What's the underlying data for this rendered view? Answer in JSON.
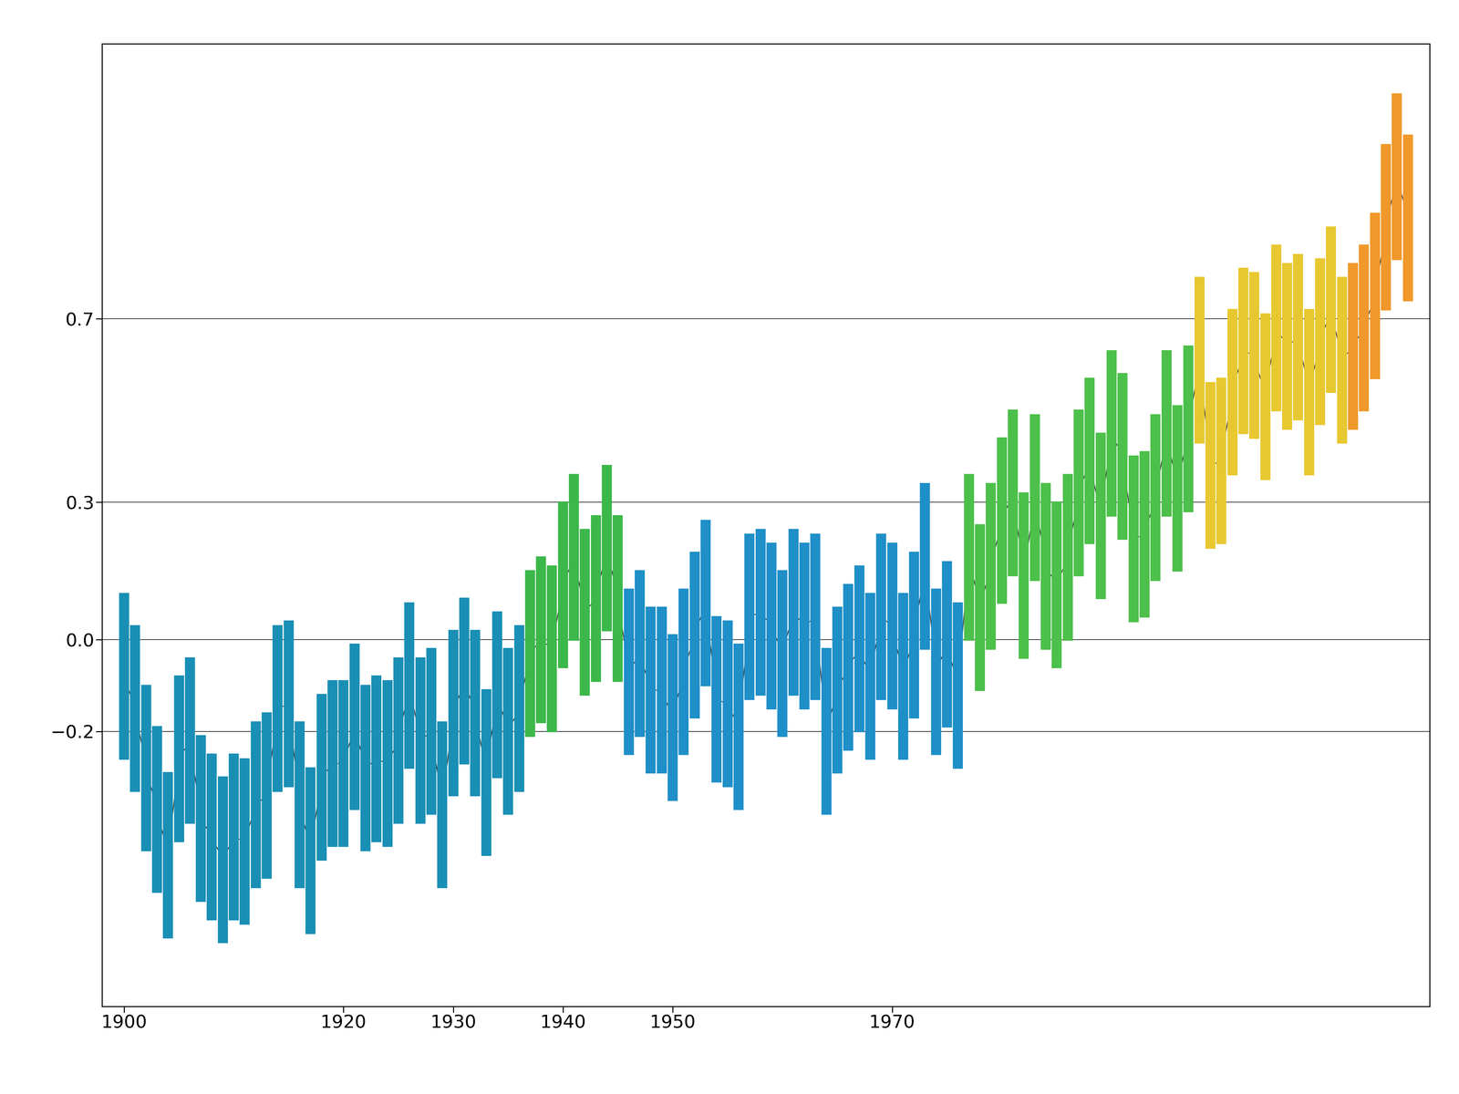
{
  "chart_data": {
    "type": "line",
    "marker": "stick",
    "grid": true,
    "x": [
      1900,
      1901,
      1902,
      1903,
      1904,
      1905,
      1906,
      1907,
      1908,
      1909,
      1910,
      1911,
      1912,
      1913,
      1914,
      1915,
      1916,
      1917,
      1918,
      1919,
      1920,
      1921,
      1922,
      1923,
      1924,
      1925,
      1926,
      1927,
      1928,
      1929,
      1930,
      1931,
      1932,
      1933,
      1934,
      1935,
      1936,
      1937,
      1938,
      1939,
      1940,
      1941,
      1942,
      1943,
      1944,
      1945,
      1946,
      1947,
      1948,
      1949,
      1950,
      1951,
      1952,
      1953,
      1954,
      1955,
      1956,
      1957,
      1958,
      1959,
      1960,
      1961,
      1962,
      1963,
      1964,
      1965,
      1966,
      1967,
      1968,
      1969,
      1970,
      1971,
      1972,
      1973,
      1974,
      1975,
      1976,
      1977,
      1978,
      1979,
      1980,
      1981,
      1982,
      1983,
      1984,
      1985,
      1986,
      1987,
      1988,
      1989,
      1990,
      1991,
      1992,
      1993,
      1994,
      1995,
      1996,
      1997,
      1998,
      1999,
      2000,
      2001,
      2002,
      2003,
      2004,
      2005,
      2006,
      2007,
      2008,
      2009,
      2010,
      2011,
      2012,
      2013,
      2014,
      2015,
      2016,
      2017
    ],
    "values": [
      -0.08,
      -0.15,
      -0.28,
      -0.37,
      -0.47,
      -0.26,
      -0.22,
      -0.39,
      -0.43,
      -0.48,
      -0.43,
      -0.44,
      -0.36,
      -0.34,
      -0.15,
      -0.14,
      -0.36,
      -0.46,
      -0.3,
      -0.27,
      -0.27,
      -0.19,
      -0.28,
      -0.26,
      -0.27,
      -0.22,
      -0.1,
      -0.22,
      -0.2,
      -0.36,
      -0.16,
      -0.09,
      -0.16,
      -0.29,
      -0.12,
      -0.2,
      -0.15,
      -0.03,
      0.0,
      -0.02,
      0.12,
      0.18,
      0.06,
      0.09,
      0.2,
      0.09,
      -0.07,
      -0.03,
      -0.11,
      -0.11,
      -0.17,
      -0.07,
      0.01,
      0.08,
      -0.13,
      -0.14,
      -0.19,
      0.05,
      0.06,
      0.03,
      -0.03,
      0.06,
      0.03,
      0.05,
      -0.2,
      -0.11,
      -0.06,
      -0.02,
      -0.08,
      0.05,
      0.03,
      -0.08,
      0.01,
      0.16,
      -0.07,
      -0.01,
      -0.1,
      0.18,
      0.07,
      0.16,
      0.26,
      0.32,
      0.14,
      0.31,
      0.16,
      0.12,
      0.18,
      0.32,
      0.39,
      0.27,
      0.45,
      0.4,
      0.22,
      0.23,
      0.31,
      0.45,
      0.33,
      0.46,
      0.61,
      0.38,
      0.39,
      0.54,
      0.63,
      0.62,
      0.53,
      0.68,
      0.64,
      0.66,
      0.54,
      0.65,
      0.72,
      0.61,
      0.64,
      0.68,
      0.75,
      0.9,
      1.01,
      0.92
    ],
    "colors": [
      "#1a8fb5",
      "#1a8fb5",
      "#1a8fb5",
      "#1a8fb5",
      "#1a8fb5",
      "#1a8fb5",
      "#1a8fb5",
      "#1a8fb5",
      "#1a8fb5",
      "#1a8fb5",
      "#1a8fb5",
      "#1a8fb5",
      "#1a8fb5",
      "#1a8fb5",
      "#1a8fb5",
      "#1a8fb5",
      "#1a8fb5",
      "#1a8fb5",
      "#1a8fb5",
      "#1a8fb5",
      "#1a8fb5",
      "#1a8fb5",
      "#1a8fb5",
      "#1a8fb5",
      "#1a8fb5",
      "#1a8fb5",
      "#1a8fb5",
      "#1a8fb5",
      "#1a8fb5",
      "#1a8fb5",
      "#1a8fb5",
      "#1a8fb5",
      "#1a8fb5",
      "#1a8fb5",
      "#1a8fb5",
      "#1a8fb5",
      "#1a8fb5",
      "#3cb84a",
      "#3cb84a",
      "#3cb84a",
      "#3cb84a",
      "#3cb84a",
      "#3cb84a",
      "#3cb84a",
      "#3cb84a",
      "#3cb84a",
      "#1f8fc8",
      "#1f8fc8",
      "#1f8fc8",
      "#1f8fc8",
      "#1f8fc8",
      "#1f8fc8",
      "#1f8fc8",
      "#1f8fc8",
      "#1f8fc8",
      "#1f8fc8",
      "#1f8fc8",
      "#1f8fc8",
      "#1f8fc8",
      "#1f8fc8",
      "#1f8fc8",
      "#1f8fc8",
      "#1f8fc8",
      "#1f8fc8",
      "#1f8fc8",
      "#1f8fc8",
      "#1f8fc8",
      "#1f8fc8",
      "#1f8fc8",
      "#1f8fc8",
      "#1f8fc8",
      "#1f8fc8",
      "#1f8fc8",
      "#1f8fc8",
      "#1f8fc8",
      "#1f8fc8",
      "#1f8fc8",
      "#4cc04a",
      "#4cc04a",
      "#4cc04a",
      "#4cc04a",
      "#4cc04a",
      "#4cc04a",
      "#4cc04a",
      "#4cc04a",
      "#4cc04a",
      "#4cc04a",
      "#4cc04a",
      "#4cc04a",
      "#4cc04a",
      "#4cc04a",
      "#4cc04a",
      "#4cc04a",
      "#4cc04a",
      "#4cc04a",
      "#4cc04a",
      "#4cc04a",
      "#4cc04a",
      "#e8c830",
      "#e8c830",
      "#e8c830",
      "#e8c830",
      "#e8c830",
      "#e8c830",
      "#e8c830",
      "#e8c830",
      "#e8c830",
      "#e8c830",
      "#e8c830",
      "#e8c830",
      "#e8c830",
      "#e8c830",
      "#f0982a",
      "#f0982a",
      "#f0982a",
      "#f0982a",
      "#f0982a",
      "#f0982a"
    ],
    "xlim": [
      1898,
      2019
    ],
    "xticks": [
      1900,
      1920,
      1930,
      1940,
      1950,
      1970
    ],
    "ylim": [
      -0.8,
      1.3
    ],
    "yticks": [
      {
        "value": -0.2,
        "label": "−0.2"
      },
      0.0,
      0.3,
      0.7
    ]
  }
}
